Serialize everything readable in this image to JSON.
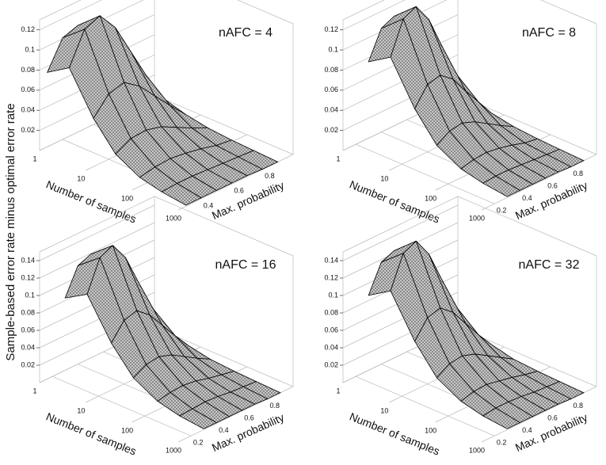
{
  "zlabel": "Sample-based error rate minus optimal error rate",
  "chart_data": [
    {
      "type": "surface",
      "title": "nAFC = 4",
      "xlabel": "Number of samples",
      "ylabel": "Max. probability",
      "xscale": "log",
      "xlim": [
        1,
        1000
      ],
      "xticks": [
        1,
        10,
        100,
        1000
      ],
      "ylim": [
        0.25,
        1
      ],
      "yticks": [
        0.4,
        0.6,
        0.8
      ],
      "zlim": [
        0,
        0.13
      ],
      "zticks": [
        0.02,
        0.04,
        0.06,
        0.08,
        0.1,
        0.12
      ],
      "face_colors": [
        "#c8c8c8",
        "#8a8a8a"
      ],
      "edge_color": "#000000",
      "x": [
        1,
        3,
        10,
        30,
        100,
        300,
        1000
      ],
      "y": [
        0.3,
        0.4,
        0.5,
        0.6,
        0.7,
        0.8,
        0.9
      ],
      "z": [
        [
          0.074,
          0.101,
          0.106,
          0.09,
          0.064,
          0.037,
          0.013
        ],
        [
          0.088,
          0.119,
          0.125,
          0.106,
          0.075,
          0.044,
          0.015
        ],
        [
          0.048,
          0.065,
          0.069,
          0.058,
          0.041,
          0.024,
          0.008
        ],
        [
          0.022,
          0.03,
          0.031,
          0.027,
          0.019,
          0.011,
          0.004
        ],
        [
          0.009,
          0.012,
          0.013,
          0.011,
          0.008,
          0.004,
          0.002
        ],
        [
          0.004,
          0.005,
          0.005,
          0.004,
          0.003,
          0.002,
          0.001
        ],
        [
          0.001,
          0.001,
          0.001,
          0.001,
          0.001,
          0,
          0
        ]
      ]
    },
    {
      "type": "surface",
      "title": "nAFC = 8",
      "xlabel": "Number of samples",
      "ylabel": "Max. probability",
      "xscale": "log",
      "xlim": [
        1,
        1000
      ],
      "xticks": [
        1,
        10,
        100,
        1000
      ],
      "ylim": [
        0.1,
        1
      ],
      "yticks": [
        0.2,
        0.4,
        0.6,
        0.8
      ],
      "zlim": [
        0,
        0.13
      ],
      "zticks": [
        0.02,
        0.04,
        0.06,
        0.08,
        0.1,
        0.12
      ],
      "face_colors": [
        "#c8c8c8",
        "#8a8a8a"
      ],
      "edge_color": "#000000",
      "x": [
        1,
        3,
        10,
        30,
        100,
        300,
        1000
      ],
      "y": [
        0.3,
        0.4,
        0.5,
        0.6,
        0.7,
        0.8,
        0.9
      ],
      "z": [
        [
          0.076,
          0.103,
          0.109,
          0.092,
          0.065,
          0.038,
          0.013
        ],
        [
          0.09,
          0.122,
          0.128,
          0.109,
          0.077,
          0.045,
          0.015
        ],
        [
          0.049,
          0.067,
          0.07,
          0.06,
          0.042,
          0.025,
          0.008
        ],
        [
          0.022,
          0.03,
          0.032,
          0.027,
          0.019,
          0.011,
          0.004
        ],
        [
          0.009,
          0.012,
          0.013,
          0.011,
          0.008,
          0.004,
          0.002
        ],
        [
          0.004,
          0.005,
          0.005,
          0.004,
          0.003,
          0.002,
          0.001
        ],
        [
          0.001,
          0.001,
          0.001,
          0.001,
          0.001,
          0,
          0
        ]
      ]
    },
    {
      "type": "surface",
      "title": "nAFC = 16",
      "xlabel": "Number of samples",
      "ylabel": "Max. probability",
      "xscale": "log",
      "xlim": [
        1,
        1000
      ],
      "xticks": [
        1,
        10,
        100,
        1000
      ],
      "ylim": [
        0.1,
        1
      ],
      "yticks": [
        0.2,
        0.4,
        0.6,
        0.8
      ],
      "zlim": [
        0,
        0.15
      ],
      "zticks": [
        0.02,
        0.04,
        0.06,
        0.08,
        0.1,
        0.12,
        0.14
      ],
      "face_colors": [
        "#c8c8c8",
        "#8a8a8a"
      ],
      "edge_color": "#000000",
      "x": [
        1,
        3,
        10,
        30,
        100,
        300,
        1000
      ],
      "y": [
        0.3,
        0.4,
        0.5,
        0.6,
        0.7,
        0.8,
        0.9
      ],
      "z": [
        [
          0.083,
          0.113,
          0.119,
          0.101,
          0.071,
          0.042,
          0.014
        ],
        [
          0.098,
          0.133,
          0.14,
          0.119,
          0.084,
          0.049,
          0.017
        ],
        [
          0.054,
          0.073,
          0.077,
          0.065,
          0.046,
          0.027,
          0.009
        ],
        [
          0.025,
          0.033,
          0.035,
          0.03,
          0.021,
          0.012,
          0.004
        ],
        [
          0.01,
          0.013,
          0.014,
          0.012,
          0.008,
          0.005,
          0.002
        ],
        [
          0.004,
          0.005,
          0.006,
          0.005,
          0.003,
          0.002,
          0.001
        ],
        [
          0.001,
          0.001,
          0.001,
          0.001,
          0.001,
          0,
          0
        ]
      ]
    },
    {
      "type": "surface",
      "title": "nAFC = 32",
      "xlabel": "Number of samples",
      "ylabel": "Max. probability",
      "xscale": "log",
      "xlim": [
        1,
        1000
      ],
      "xticks": [
        1,
        10,
        100,
        1000
      ],
      "ylim": [
        0.1,
        1
      ],
      "yticks": [
        0.2,
        0.4,
        0.6,
        0.8
      ],
      "zlim": [
        0,
        0.15
      ],
      "zticks": [
        0.02,
        0.04,
        0.06,
        0.08,
        0.1,
        0.12,
        0.14
      ],
      "face_colors": [
        "#c8c8c8",
        "#8a8a8a"
      ],
      "edge_color": "#000000",
      "x": [
        1,
        3,
        10,
        30,
        100,
        300,
        1000
      ],
      "y": [
        0.3,
        0.4,
        0.5,
        0.6,
        0.7,
        0.8,
        0.9
      ],
      "z": [
        [
          0.086,
          0.117,
          0.123,
          0.105,
          0.074,
          0.043,
          0.015
        ],
        [
          0.102,
          0.138,
          0.145,
          0.123,
          0.087,
          0.051,
          0.017
        ],
        [
          0.056,
          0.076,
          0.08,
          0.068,
          0.048,
          0.028,
          0.01
        ],
        [
          0.025,
          0.034,
          0.036,
          0.031,
          0.022,
          0.013,
          0.004
        ],
        [
          0.01,
          0.014,
          0.015,
          0.012,
          0.009,
          0.005,
          0.002
        ],
        [
          0.004,
          0.006,
          0.006,
          0.005,
          0.003,
          0.002,
          0.001
        ],
        [
          0.001,
          0.001,
          0.001,
          0.001,
          0.001,
          0,
          0
        ]
      ]
    }
  ]
}
